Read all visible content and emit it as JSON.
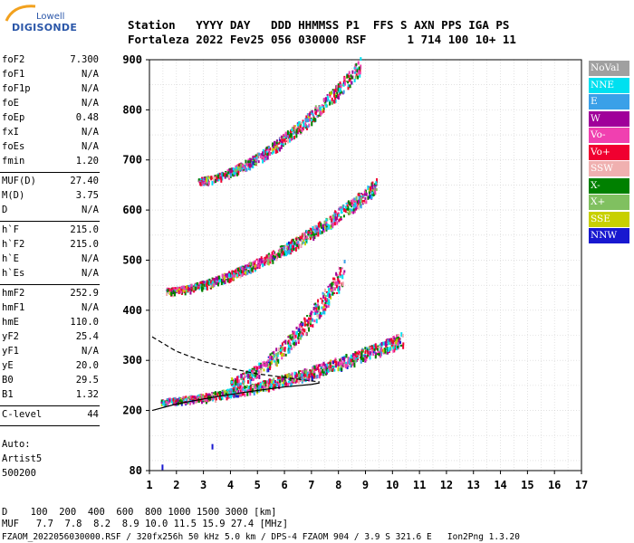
{
  "logo": {
    "top": "Lowell",
    "main": "DIGISONDE"
  },
  "header": {
    "line1": "Station   YYYY DAY   DDD HHMMSS P1  FFS S AXN PPS IGA PS",
    "line2": "Fortaleza 2022 Fev25 056 030000 RSF      1 714 100 10+ 11"
  },
  "params": [
    [
      {
        "name": "foF2",
        "value": "7.300"
      },
      {
        "name": "foF1",
        "value": "N/A"
      },
      {
        "name": "foF1p",
        "value": "N/A"
      },
      {
        "name": "foE",
        "value": "N/A"
      },
      {
        "name": "foEp",
        "value": "0.48"
      },
      {
        "name": "fxI",
        "value": "N/A"
      },
      {
        "name": "foEs",
        "value": "N/A"
      },
      {
        "name": "fmin",
        "value": "1.20"
      }
    ],
    [
      {
        "name": "MUF(D)",
        "value": "27.40"
      },
      {
        "name": "M(D)",
        "value": "3.75"
      },
      {
        "name": "D",
        "value": "N/A"
      }
    ],
    [
      {
        "name": "h`F",
        "value": "215.0"
      },
      {
        "name": "h`F2",
        "value": "215.0"
      },
      {
        "name": "h`E",
        "value": "N/A"
      },
      {
        "name": "h`Es",
        "value": "N/A"
      }
    ],
    [
      {
        "name": "hmF2",
        "value": "252.9"
      },
      {
        "name": "hmF1",
        "value": "N/A"
      },
      {
        "name": "hmE",
        "value": "110.0"
      },
      {
        "name": "yF2",
        "value": "25.4"
      },
      {
        "name": "yF1",
        "value": "N/A"
      },
      {
        "name": "yE",
        "value": "20.0"
      },
      {
        "name": "B0",
        "value": "29.5"
      },
      {
        "name": "B1",
        "value": "1.32"
      }
    ],
    [
      {
        "name": "C-level",
        "value": "44"
      }
    ]
  ],
  "notes": [
    "Auto:",
    "Artist5",
    "500200"
  ],
  "legend": [
    {
      "label": "NoVal",
      "color": "#a0a0a0"
    },
    {
      "label": "NNE",
      "color": "#00e0f0"
    },
    {
      "label": "E",
      "color": "#3aa0e8"
    },
    {
      "label": "W",
      "color": "#a0009a"
    },
    {
      "label": "Vo-",
      "color": "#f040b0"
    },
    {
      "label": "Vo+",
      "color": "#f00030"
    },
    {
      "label": "SSW",
      "color": "#f0b0b0"
    },
    {
      "label": "X-",
      "color": "#008000"
    },
    {
      "label": "X+",
      "color": "#80c060"
    },
    {
      "label": "SSE",
      "color": "#c8d000"
    },
    {
      "label": "NNW",
      "color": "#1818d0"
    }
  ],
  "footer": {
    "d_line": "D    100  200  400  600  800 1000 1500 3000 [km]",
    "muf_line": "MUF   7.7  7.8  8.2  8.9 10.0 11.5 15.9 27.4 [MHz]",
    "file_line": "FZAOM_2022056030000.RSF / 320fx256h 50 kHz 5.0 km / DPS-4 FZAOM 904 / 3.9 S 321.6 E   Ion2Png 1.3.20"
  },
  "chart_data": {
    "type": "scatter",
    "xlabel": "",
    "ylabel": "",
    "xlim": [
      1,
      17
    ],
    "ylim": [
      80,
      900
    ],
    "x_ticks": [
      "1",
      "2",
      "3",
      "4",
      "5",
      "6",
      "7",
      "8",
      "9",
      "10",
      "11",
      "12",
      "13",
      "14",
      "15",
      "16",
      "17"
    ],
    "y_ticks": [
      "80",
      "200",
      "300",
      "400",
      "500",
      "600",
      "700",
      "800",
      "900"
    ],
    "grid": true,
    "legend_position": "right",
    "traces": [
      {
        "name": "O-trace 1st hop",
        "x_range": [
          1.4,
          10.4
        ],
        "h_start": 220,
        "h_end": 345,
        "spread": 18
      },
      {
        "name": "X-trace / spread",
        "x_range": [
          4.0,
          8.2
        ],
        "h_start": 260,
        "h_end": 480,
        "spread": 30
      },
      {
        "name": "2nd hop",
        "x_range": [
          1.6,
          9.4
        ],
        "h_start": 440,
        "h_end": 650,
        "spread": 18
      },
      {
        "name": "3rd hop",
        "x_range": [
          2.8,
          8.8
        ],
        "h_start": 660,
        "h_end": 890,
        "spread": 20
      }
    ],
    "true_height_profile": [
      [
        1.1,
        200
      ],
      [
        2,
        213
      ],
      [
        3,
        223
      ],
      [
        4,
        232
      ],
      [
        5,
        240
      ],
      [
        6,
        247
      ],
      [
        7,
        252
      ],
      [
        7.3,
        255
      ]
    ],
    "extrapolated_profile": [
      [
        1.1,
        347
      ],
      [
        2,
        318
      ],
      [
        3,
        298
      ],
      [
        4,
        284
      ],
      [
        5,
        273
      ],
      [
        6,
        266
      ],
      [
        7,
        259
      ],
      [
        7.3,
        257
      ]
    ],
    "isolated_points": [
      [
        1.45,
        92
      ],
      [
        3.3,
        133
      ]
    ]
  }
}
